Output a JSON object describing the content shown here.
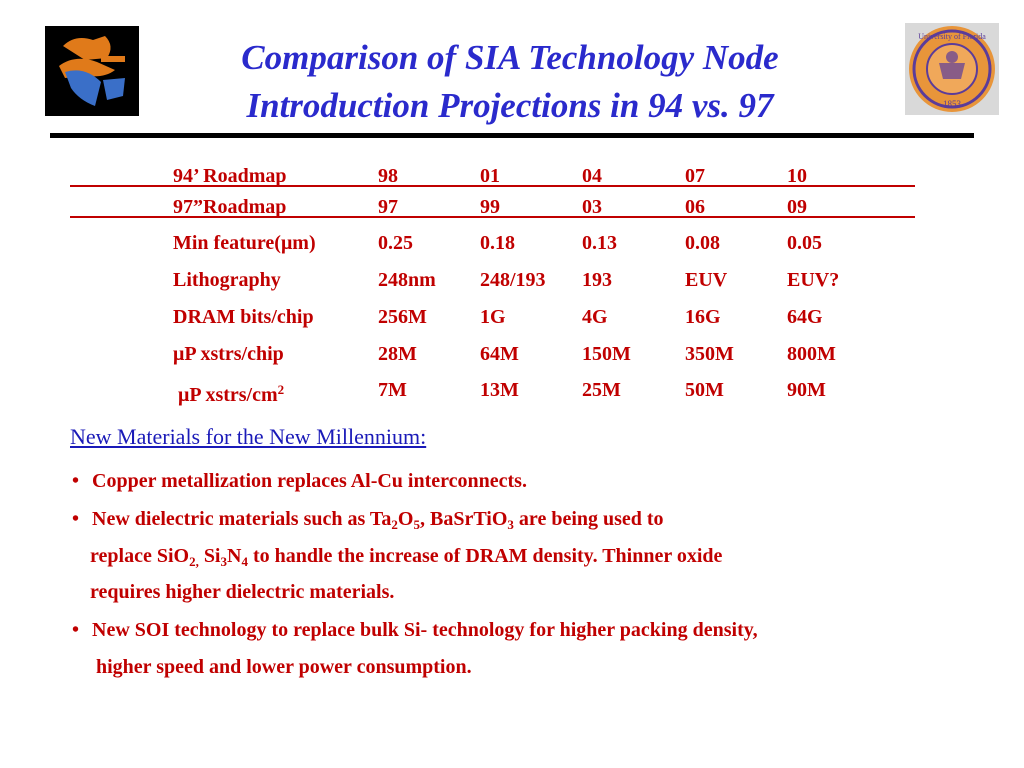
{
  "title": {
    "line1": "Comparison of SIA Technology Node",
    "line2": "Introduction Projections in 94 vs. 97"
  },
  "logos": {
    "left_icon": "gator-florida-logo",
    "right_icon": "university-of-florida-seal",
    "right_seal_text_top": "University of Florida",
    "right_seal_text_bottom": "1853"
  },
  "table": {
    "roadmap94": [
      "94’ Roadmap",
      "98",
      "01",
      "04",
      "07",
      "10"
    ],
    "roadmap97": [
      "97”Roadmap",
      "97",
      "99",
      "03",
      "06",
      "09"
    ],
    "min_feature": {
      "label_prefix": "Min feature(",
      "mu": "μ",
      "label_suffix": "m)",
      "values": [
        "0.25",
        "0.18",
        "0.13",
        "0.08",
        "0.05"
      ]
    },
    "lithography": {
      "label": "Lithography",
      "values": [
        "248nm",
        "248/193",
        "193",
        "EUV",
        "EUV?"
      ]
    },
    "dram": {
      "label": "DRAM bits/chip",
      "values": [
        "256M",
        "1G",
        "4G",
        "16G",
        "64G"
      ]
    },
    "up_chip": {
      "mu": "μ",
      "label": "P xstrs/chip",
      "values": [
        "28M",
        "64M",
        "150M",
        "350M",
        "800M"
      ]
    },
    "up_cm2": {
      "mu": "μ",
      "label": "P xstrs/cm",
      "sup": "2",
      "values": [
        "7M",
        "13M",
        "25M",
        "50M",
        "90M"
      ]
    }
  },
  "section_heading": "New Materials for the New Millennium:",
  "bullets": {
    "b1": {
      "dot": "•",
      "text": "Copper metallization replaces Al-Cu interconnects."
    },
    "b2": {
      "dot": "•",
      "t1": "New dielectric materials  such as Ta",
      "s1": "2",
      "t2": "O",
      "s2": "5",
      "t3": ", BaSrTiO",
      "s3": "3",
      "t4": " are being used to",
      "t5": "replace SiO",
      "s5": "2,",
      "t6": " Si",
      "s6": "3",
      "t7": "N",
      "s7": "4",
      "t8": " to handle the increase of DRAM density. Thinner oxide",
      "t9": "requires higher dielectric materials."
    },
    "b3": {
      "dot": "•",
      "line1": "New SOI technology to replace bulk Si- technology for higher packing density,",
      "line2": "higher speed and lower power consumption."
    }
  }
}
